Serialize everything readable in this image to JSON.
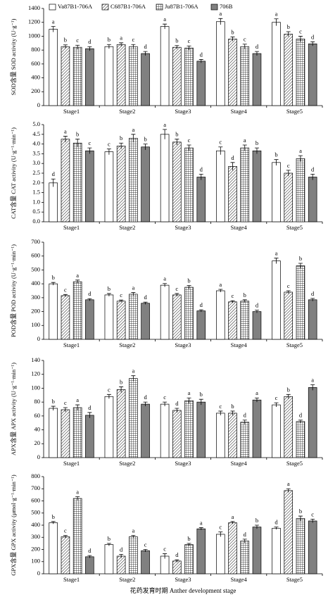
{
  "chart_data": [
    {
      "type": "bar",
      "y_label": "SOD含量 SOD activity (U·g⁻¹)",
      "legend": "top",
      "categories": [
        "Stage1",
        "Stage2",
        "Stage3",
        "Stage4",
        "Stage5"
      ],
      "ylim": [
        0,
        1400
      ],
      "yticks": [
        0,
        200,
        400,
        600,
        800,
        1000,
        1200,
        1400
      ],
      "series": [
        {
          "name": "Va87B1-706A",
          "color": "#ffffff",
          "pattern": "none",
          "values": [
            1100,
            850,
            1140,
            1210,
            1200
          ],
          "errors": [
            40,
            30,
            35,
            45,
            50
          ],
          "labels": [
            "a",
            "b",
            "a",
            "a",
            "a"
          ]
        },
        {
          "name": "C687B1-706A",
          "color": "#ffffff",
          "pattern": "hatch",
          "values": [
            850,
            880,
            840,
            960,
            1030
          ],
          "errors": [
            25,
            25,
            25,
            30,
            35
          ],
          "labels": [
            "b",
            "a",
            "b",
            "b",
            "b"
          ]
        },
        {
          "name": "Ju87B1-706A",
          "color": "#ffffff",
          "pattern": "grid",
          "values": [
            840,
            850,
            830,
            850,
            960
          ],
          "errors": [
            30,
            30,
            30,
            35,
            40
          ],
          "labels": [
            "c",
            "c",
            "c",
            "c",
            "c"
          ]
        },
        {
          "name": "706B",
          "color": "#808080",
          "pattern": "none",
          "values": [
            820,
            750,
            640,
            750,
            890
          ],
          "errors": [
            30,
            30,
            25,
            30,
            30
          ],
          "labels": [
            "d",
            "d",
            "d",
            "d",
            "d"
          ]
        }
      ]
    },
    {
      "type": "bar",
      "y_label": "CAT含量 CAT activity (U·g⁻¹·min⁻¹)",
      "categories": [
        "Stage1",
        "Stage2",
        "Stage3",
        "Stage4",
        "Stage5"
      ],
      "ylim": [
        0,
        5
      ],
      "yticks": [
        {
          "value": 0,
          "label": "0.0"
        },
        0.5,
        {
          "value": 1,
          "label": "1.0"
        },
        1.5,
        {
          "value": 2,
          "label": "2.0"
        },
        2.5,
        {
          "value": 3,
          "label": "3.0"
        },
        3.5,
        {
          "value": 4,
          "label": "4.0"
        },
        4.5,
        {
          "value": 5,
          "label": "5.0"
        }
      ],
      "series": [
        {
          "color": "#ffffff",
          "pattern": "none",
          "values": [
            2.0,
            3.6,
            4.5,
            3.65,
            3.05
          ],
          "errors": [
            0.2,
            0.15,
            0.25,
            0.2,
            0.15
          ],
          "labels": [
            "d",
            "c",
            "a",
            "c",
            "b"
          ]
        },
        {
          "color": "#ffffff",
          "pattern": "hatch",
          "values": [
            4.25,
            3.9,
            4.1,
            2.85,
            2.5
          ],
          "errors": [
            0.15,
            0.15,
            0.15,
            0.2,
            0.15
          ],
          "labels": [
            "a",
            "b",
            "b",
            "d",
            "c"
          ]
        },
        {
          "color": "#ffffff",
          "pattern": "grid",
          "values": [
            4.05,
            4.3,
            3.8,
            3.8,
            3.25
          ],
          "errors": [
            0.2,
            0.2,
            0.15,
            0.15,
            0.15
          ],
          "labels": [
            "b",
            "a",
            "c",
            "a",
            "a"
          ]
        },
        {
          "color": "#808080",
          "pattern": "none",
          "values": [
            3.65,
            3.85,
            2.3,
            3.65,
            2.3
          ],
          "errors": [
            0.15,
            0.15,
            0.15,
            0.15,
            0.15
          ],
          "labels": [
            "c",
            "b",
            "d",
            "b",
            "d"
          ]
        }
      ]
    },
    {
      "type": "bar",
      "y_label": "POD含量 POD activity (U·g⁻¹·min⁻¹)",
      "categories": [
        "Stage1",
        "Stage2",
        "Stage3",
        "Stage4",
        "Stage5"
      ],
      "ylim": [
        0,
        700
      ],
      "yticks": [
        0,
        100,
        200,
        300,
        400,
        500,
        600,
        700
      ],
      "series": [
        {
          "color": "#ffffff",
          "pattern": "none",
          "values": [
            400,
            320,
            390,
            350,
            565
          ],
          "errors": [
            10,
            10,
            12,
            10,
            20
          ],
          "labels": [
            "b",
            "b",
            "a",
            "a",
            "a"
          ]
        },
        {
          "color": "#ffffff",
          "pattern": "hatch",
          "values": [
            315,
            275,
            320,
            270,
            340
          ],
          "errors": [
            8,
            8,
            10,
            8,
            10
          ],
          "labels": [
            "c",
            "c",
            "c",
            "c",
            "c"
          ]
        },
        {
          "color": "#ffffff",
          "pattern": "grid",
          "values": [
            415,
            325,
            375,
            275,
            530
          ],
          "errors": [
            12,
            12,
            12,
            10,
            18
          ],
          "labels": [
            "a",
            "a",
            "b",
            "b",
            "b"
          ]
        },
        {
          "color": "#808080",
          "pattern": "none",
          "values": [
            285,
            260,
            205,
            200,
            285
          ],
          "errors": [
            8,
            8,
            8,
            10,
            10
          ],
          "labels": [
            "d",
            "d",
            "d",
            "d",
            "d"
          ]
        }
      ]
    },
    {
      "type": "bar",
      "y_label": "APX含量 APX activity (U·g⁻¹·min⁻¹)",
      "categories": [
        "Stage1",
        "Stage2",
        "Stage3",
        "Stage4",
        "Stage5"
      ],
      "ylim": [
        0,
        140
      ],
      "yticks": [
        0,
        20,
        40,
        60,
        80,
        100,
        120,
        140
      ],
      "series": [
        {
          "color": "#ffffff",
          "pattern": "none",
          "values": [
            71,
            88,
            77,
            64,
            76
          ],
          "errors": [
            3,
            3,
            3,
            3,
            3
          ],
          "labels": [
            "b",
            "c",
            "c",
            "c",
            "c"
          ]
        },
        {
          "color": "#ffffff",
          "pattern": "hatch",
          "values": [
            69,
            98,
            68,
            64,
            88
          ],
          "errors": [
            3,
            4,
            3,
            3,
            3
          ],
          "labels": [
            "c",
            "b",
            "d",
            "b",
            "b"
          ]
        },
        {
          "color": "#ffffff",
          "pattern": "grid",
          "values": [
            72,
            114,
            82,
            51,
            52
          ],
          "errors": [
            4,
            4,
            4,
            3,
            2
          ],
          "labels": [
            "a",
            "a",
            "a",
            "d",
            "d"
          ]
        },
        {
          "color": "#808080",
          "pattern": "none",
          "values": [
            61,
            77,
            80,
            83,
            101
          ],
          "errors": [
            4,
            3,
            4,
            3,
            4
          ],
          "labels": [
            "d",
            "d",
            "b",
            "a",
            "a"
          ]
        }
      ]
    },
    {
      "type": "bar",
      "y_label": "GPX含量 GPX activity (μmol·g⁻¹·min⁻¹)",
      "x_label": "花药发育时期 Anther development stage",
      "categories": [
        "Stage1",
        "Stage2",
        "Stage3",
        "Stage4",
        "Stage5"
      ],
      "ylim": [
        0,
        800
      ],
      "yticks": [
        0,
        100,
        200,
        300,
        400,
        500,
        600,
        700,
        800
      ],
      "series": [
        {
          "color": "#ffffff",
          "pattern": "none",
          "values": [
            420,
            240,
            145,
            325,
            375
          ],
          "errors": [
            10,
            10,
            20,
            20,
            10
          ],
          "labels": [
            "b",
            "b",
            "c",
            "c",
            "d"
          ]
        },
        {
          "color": "#ffffff",
          "pattern": "hatch",
          "values": [
            305,
            145,
            105,
            420,
            685
          ],
          "errors": [
            10,
            15,
            10,
            10,
            15
          ],
          "labels": [
            "c",
            "d",
            "d",
            "a",
            "a"
          ]
        },
        {
          "color": "#ffffff",
          "pattern": "grid",
          "values": [
            620,
            305,
            240,
            270,
            455
          ],
          "errors": [
            15,
            10,
            10,
            15,
            20
          ],
          "labels": [
            "a",
            "a",
            "b",
            "d",
            "b"
          ]
        },
        {
          "color": "#808080",
          "pattern": "none",
          "values": [
            140,
            190,
            370,
            385,
            435
          ],
          "errors": [
            10,
            10,
            10,
            15,
            15
          ],
          "labels": [
            "d",
            "c",
            "a",
            "b",
            "c"
          ]
        }
      ]
    }
  ]
}
